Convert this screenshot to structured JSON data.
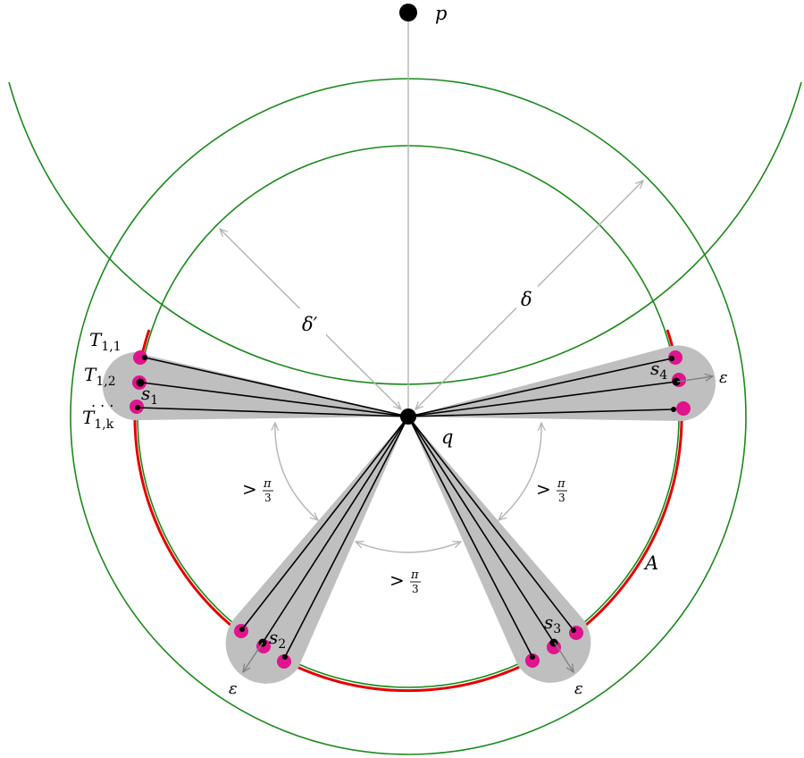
{
  "labels": {
    "p": "p",
    "q": "q",
    "A": "A",
    "delta": "δ",
    "delta_prime": "δ′",
    "eps_right": "ε",
    "eps_left_bottom": "ε",
    "eps_right_bottom": "ε",
    "s1": "s",
    "s1_sub": "1",
    "s2": "s",
    "s2_sub": "2",
    "s3": "s",
    "s3_sub": "3",
    "s4": "s",
    "s4_sub": "4",
    "t11": "T",
    "t11_sub": "1,1",
    "t12": "T",
    "t12_sub": "1,2",
    "t1k": "T",
    "t1k_sub": "1,k",
    "dots": ". . .",
    "angle_gt": ">",
    "pi": "π",
    "three": "3"
  },
  "colors": {
    "green_circle": "#1a8a1a",
    "red_arc": "#e60000",
    "magenta": "#e0148c",
    "gray_fill": "#bfbfbf",
    "gray_line": "#b3b3b3",
    "gray_arrow": "#808080",
    "black": "#000000"
  }
}
